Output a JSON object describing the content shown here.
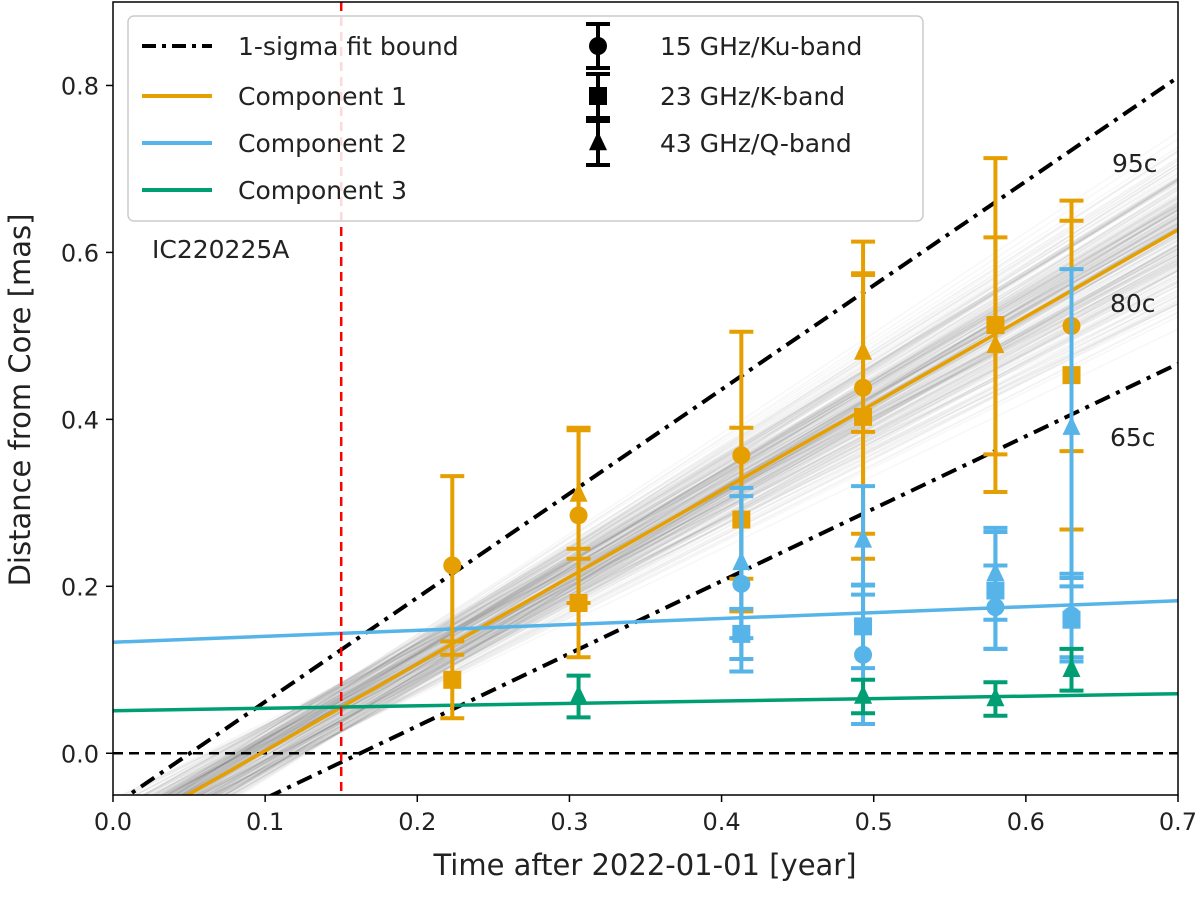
{
  "chart_data": {
    "type": "scatter",
    "xlabel": "Time after 2022-01-01 [year]",
    "ylabel": "Distance from Core [mas]",
    "xlim": [
      0.0,
      0.7
    ],
    "ylim": [
      -0.05,
      0.9
    ],
    "xticks": [
      "0.0",
      "0.1",
      "0.2",
      "0.3",
      "0.4",
      "0.5",
      "0.6",
      "0.7"
    ],
    "yticks": [
      "0.0",
      "0.2",
      "0.4",
      "0.6",
      "0.8"
    ],
    "grid": false,
    "legend_position": "top-left",
    "legend": {
      "fit_bound": "1-sigma fit bound",
      "components": [
        "Component 1",
        "Component 2",
        "Component 3"
      ],
      "bands": [
        "15 GHz/Ku-band",
        "23 GHz/K-band",
        "43 GHz/Q-band"
      ]
    },
    "colors": {
      "component1": "#E69F00",
      "component2": "#56B4E9",
      "component3": "#009E73",
      "event": "#FF0000",
      "bound": "#000000"
    },
    "event": {
      "label": "IC220225A",
      "x": 0.15
    },
    "speed_labels": [
      "95c",
      "80c",
      "65c"
    ],
    "fit_lines": [
      {
        "name": "Component 1",
        "slope": 1.04,
        "intercept": -0.101,
        "color": "#E69F00"
      },
      {
        "name": "Component 2",
        "slope": 0.071,
        "intercept": 0.133,
        "color": "#56B4E9"
      },
      {
        "name": "Component 3",
        "slope": 0.029,
        "intercept": 0.051,
        "color": "#009E73"
      }
    ],
    "bound_lines": [
      {
        "slope": 1.247,
        "intercept": -0.063
      },
      {
        "slope": 0.868,
        "intercept": -0.141
      }
    ],
    "zero_line": 0.0,
    "series": [
      {
        "component": 1,
        "band": "15 GHz/Ku-band",
        "marker": "circle",
        "x": [
          0.223,
          0.306,
          0.413,
          0.493,
          0.63
        ],
        "y": [
          0.225,
          0.285,
          0.357,
          0.438,
          0.512
        ],
        "err": [
          0.107,
          0.105,
          0.148,
          0.175,
          0.15
        ]
      },
      {
        "component": 1,
        "band": "23 GHz/K-band",
        "marker": "square",
        "x": [
          0.223,
          0.306,
          0.413,
          0.493,
          0.58,
          0.63
        ],
        "y": [
          0.088,
          0.18,
          0.28,
          0.403,
          0.513,
          0.453
        ],
        "err": [
          0.046,
          0.065,
          0.11,
          0.17,
          0.2,
          0.185
        ]
      },
      {
        "component": 1,
        "band": "43 GHz/Q-band",
        "marker": "triangle",
        "x": [
          0.306,
          0.493,
          0.58
        ],
        "y": [
          0.31,
          0.48,
          0.488
        ],
        "err": [
          0.077,
          0.095,
          0.13
        ]
      },
      {
        "component": 2,
        "band": "15 GHz/Ku-band",
        "marker": "circle",
        "x": [
          0.413,
          0.493,
          0.58,
          0.63
        ],
        "y": [
          0.203,
          0.118,
          0.175,
          0.165
        ],
        "err": [
          0.105,
          0.083,
          0.05,
          0.05
        ]
      },
      {
        "component": 2,
        "band": "23 GHz/K-band",
        "marker": "square",
        "x": [
          0.413,
          0.493,
          0.58,
          0.63
        ],
        "y": [
          0.143,
          0.152,
          0.195,
          0.16
        ],
        "err": [
          0.03,
          0.05,
          0.07,
          0.05
        ]
      },
      {
        "component": 2,
        "band": "43 GHz/Q-band",
        "marker": "triangle",
        "x": [
          0.413,
          0.493,
          0.58,
          0.63
        ],
        "y": [
          0.228,
          0.255,
          0.215,
          0.39
        ],
        "err": [
          0.09,
          0.065,
          0.055,
          0.19
        ]
      },
      {
        "component": 3,
        "band": "43 GHz/Q-band",
        "marker": "triangle",
        "x": [
          0.306,
          0.493,
          0.58,
          0.63
        ],
        "y": [
          0.068,
          0.068,
          0.065,
          0.1
        ],
        "err": [
          0.025,
          0.02,
          0.02,
          0.025
        ]
      }
    ]
  }
}
